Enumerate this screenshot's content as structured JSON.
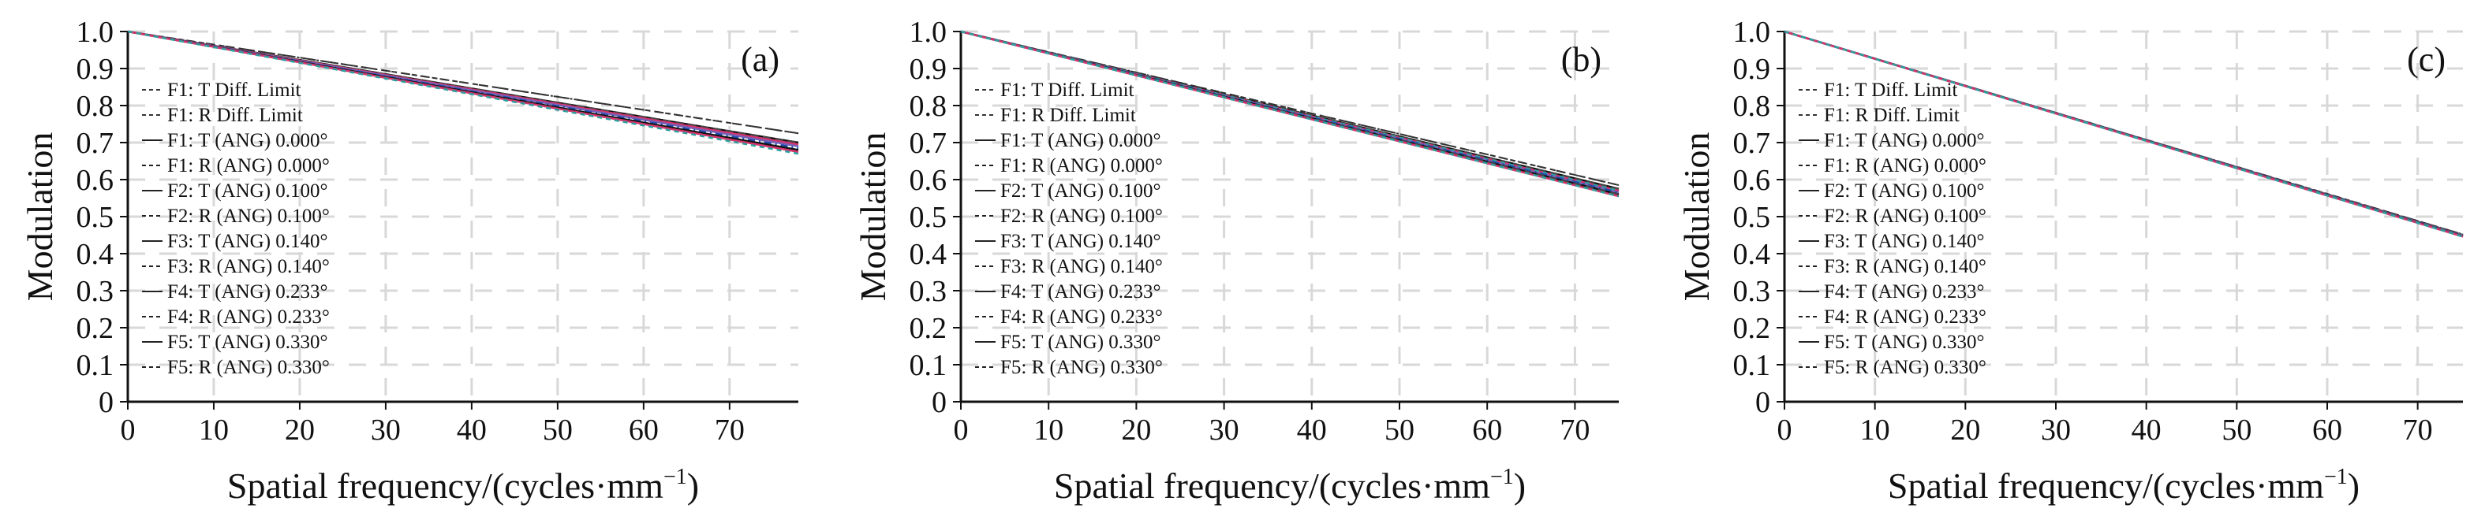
{
  "figure": {
    "ylabel": "Modulation",
    "xlabel": "Spatial frequency/(cycles·mm",
    "xlabel_sup": "−1",
    "xlabel_close": ")"
  },
  "legend_entries": [
    "F1: T Diff. Limit",
    "F1: R Diff. Limit",
    "F1: T (ANG) 0.000°",
    "F1: R (ANG) 0.000°",
    "F2: T (ANG) 0.100°",
    "F2: R (ANG) 0.100°",
    "F3: T (ANG) 0.140°",
    "F3: R (ANG) 0.140°",
    "F4: T (ANG) 0.233°",
    "F4: R (ANG) 0.233°",
    "F5: T (ANG) 0.330°",
    "F5: R (ANG) 0.330°"
  ],
  "colors": {
    "diff_limit": "#333333",
    "curves": [
      "#111111",
      "#444444",
      "#d6336c",
      "#2f9e9e",
      "#7a5fb8",
      "#1f4fb0"
    ],
    "grid": "#d8d8d8",
    "axes": "#111111"
  },
  "chart_data": [
    {
      "type": "line",
      "panel_label": "(a)",
      "xlabel": "Spatial frequency/(cycles·mm−1)",
      "ylabel": "Modulation",
      "xlim": [
        0,
        78
      ],
      "ylim": [
        0,
        1.0
      ],
      "xticks": [
        0,
        10,
        20,
        30,
        40,
        50,
        60,
        70
      ],
      "yticks": [
        0,
        0.1,
        0.2,
        0.3,
        0.4,
        0.5,
        0.6,
        0.7,
        0.8,
        0.9,
        1.0
      ],
      "grid": true,
      "legend": "left",
      "series": [
        {
          "x": [
            0,
            78
          ],
          "y": [
            1.0,
            0.725
          ]
        },
        {
          "x": [
            0,
            78
          ],
          "y": [
            1.0,
            0.725
          ]
        },
        {
          "x": [
            0,
            78
          ],
          "y": [
            1.0,
            0.7
          ]
        },
        {
          "x": [
            0,
            78
          ],
          "y": [
            1.0,
            0.7
          ]
        },
        {
          "x": [
            0,
            78
          ],
          "y": [
            1.0,
            0.695
          ]
        },
        {
          "x": [
            0,
            78
          ],
          "y": [
            1.0,
            0.69
          ]
        },
        {
          "x": [
            0,
            78
          ],
          "y": [
            1.0,
            0.69
          ]
        },
        {
          "x": [
            0,
            78
          ],
          "y": [
            1.0,
            0.685
          ]
        },
        {
          "x": [
            0,
            78
          ],
          "y": [
            1.0,
            0.68
          ]
        },
        {
          "x": [
            0,
            78
          ],
          "y": [
            1.0,
            0.675
          ]
        },
        {
          "x": [
            0,
            78
          ],
          "y": [
            1.0,
            0.675
          ]
        },
        {
          "x": [
            0,
            78
          ],
          "y": [
            1.0,
            0.67
          ]
        }
      ]
    },
    {
      "type": "line",
      "panel_label": "(b)",
      "xlabel": "Spatial frequency/(cycles·mm−1)",
      "ylabel": "Modulation",
      "xlim": [
        0,
        75
      ],
      "ylim": [
        0,
        1.0
      ],
      "xticks": [
        0,
        10,
        20,
        30,
        40,
        50,
        60,
        70
      ],
      "yticks": [
        0,
        0.1,
        0.2,
        0.3,
        0.4,
        0.5,
        0.6,
        0.7,
        0.8,
        0.9,
        1.0
      ],
      "grid": true,
      "legend": "left",
      "series": [
        {
          "x": [
            0,
            75
          ],
          "y": [
            1.0,
            0.585
          ]
        },
        {
          "x": [
            0,
            75
          ],
          "y": [
            1.0,
            0.585
          ]
        },
        {
          "x": [
            0,
            75
          ],
          "y": [
            1.0,
            0.575
          ]
        },
        {
          "x": [
            0,
            75
          ],
          "y": [
            1.0,
            0.575
          ]
        },
        {
          "x": [
            0,
            75
          ],
          "y": [
            1.0,
            0.57
          ]
        },
        {
          "x": [
            0,
            75
          ],
          "y": [
            1.0,
            0.57
          ]
        },
        {
          "x": [
            0,
            75
          ],
          "y": [
            1.0,
            0.565
          ]
        },
        {
          "x": [
            0,
            75
          ],
          "y": [
            1.0,
            0.565
          ]
        },
        {
          "x": [
            0,
            75
          ],
          "y": [
            1.0,
            0.56
          ]
        },
        {
          "x": [
            0,
            75
          ],
          "y": [
            1.0,
            0.56
          ]
        },
        {
          "x": [
            0,
            75
          ],
          "y": [
            1.0,
            0.555
          ]
        },
        {
          "x": [
            0,
            75
          ],
          "y": [
            1.0,
            0.555
          ]
        }
      ]
    },
    {
      "type": "line",
      "panel_label": "(c)",
      "xlabel": "Spatial frequency/(cycles·mm−1)",
      "ylabel": "Modulation",
      "xlim": [
        0,
        75
      ],
      "ylim": [
        0,
        1.0
      ],
      "xticks": [
        0,
        10,
        20,
        30,
        40,
        50,
        60,
        70
      ],
      "yticks": [
        0,
        0.1,
        0.2,
        0.3,
        0.4,
        0.5,
        0.6,
        0.7,
        0.8,
        0.9,
        1.0
      ],
      "grid": true,
      "legend": "left",
      "series": [
        {
          "x": [
            0,
            75
          ],
          "y": [
            1.0,
            0.452
          ]
        },
        {
          "x": [
            0,
            75
          ],
          "y": [
            1.0,
            0.452
          ]
        },
        {
          "x": [
            0,
            75
          ],
          "y": [
            1.0,
            0.45
          ]
        },
        {
          "x": [
            0,
            75
          ],
          "y": [
            1.0,
            0.45
          ]
        },
        {
          "x": [
            0,
            75
          ],
          "y": [
            1.0,
            0.449
          ]
        },
        {
          "x": [
            0,
            75
          ],
          "y": [
            1.0,
            0.449
          ]
        },
        {
          "x": [
            0,
            75
          ],
          "y": [
            1.0,
            0.448
          ]
        },
        {
          "x": [
            0,
            75
          ],
          "y": [
            1.0,
            0.448
          ]
        },
        {
          "x": [
            0,
            75
          ],
          "y": [
            1.0,
            0.447
          ]
        },
        {
          "x": [
            0,
            75
          ],
          "y": [
            1.0,
            0.447
          ]
        },
        {
          "x": [
            0,
            75
          ],
          "y": [
            1.0,
            0.446
          ]
        },
        {
          "x": [
            0,
            75
          ],
          "y": [
            1.0,
            0.446
          ]
        }
      ]
    }
  ]
}
